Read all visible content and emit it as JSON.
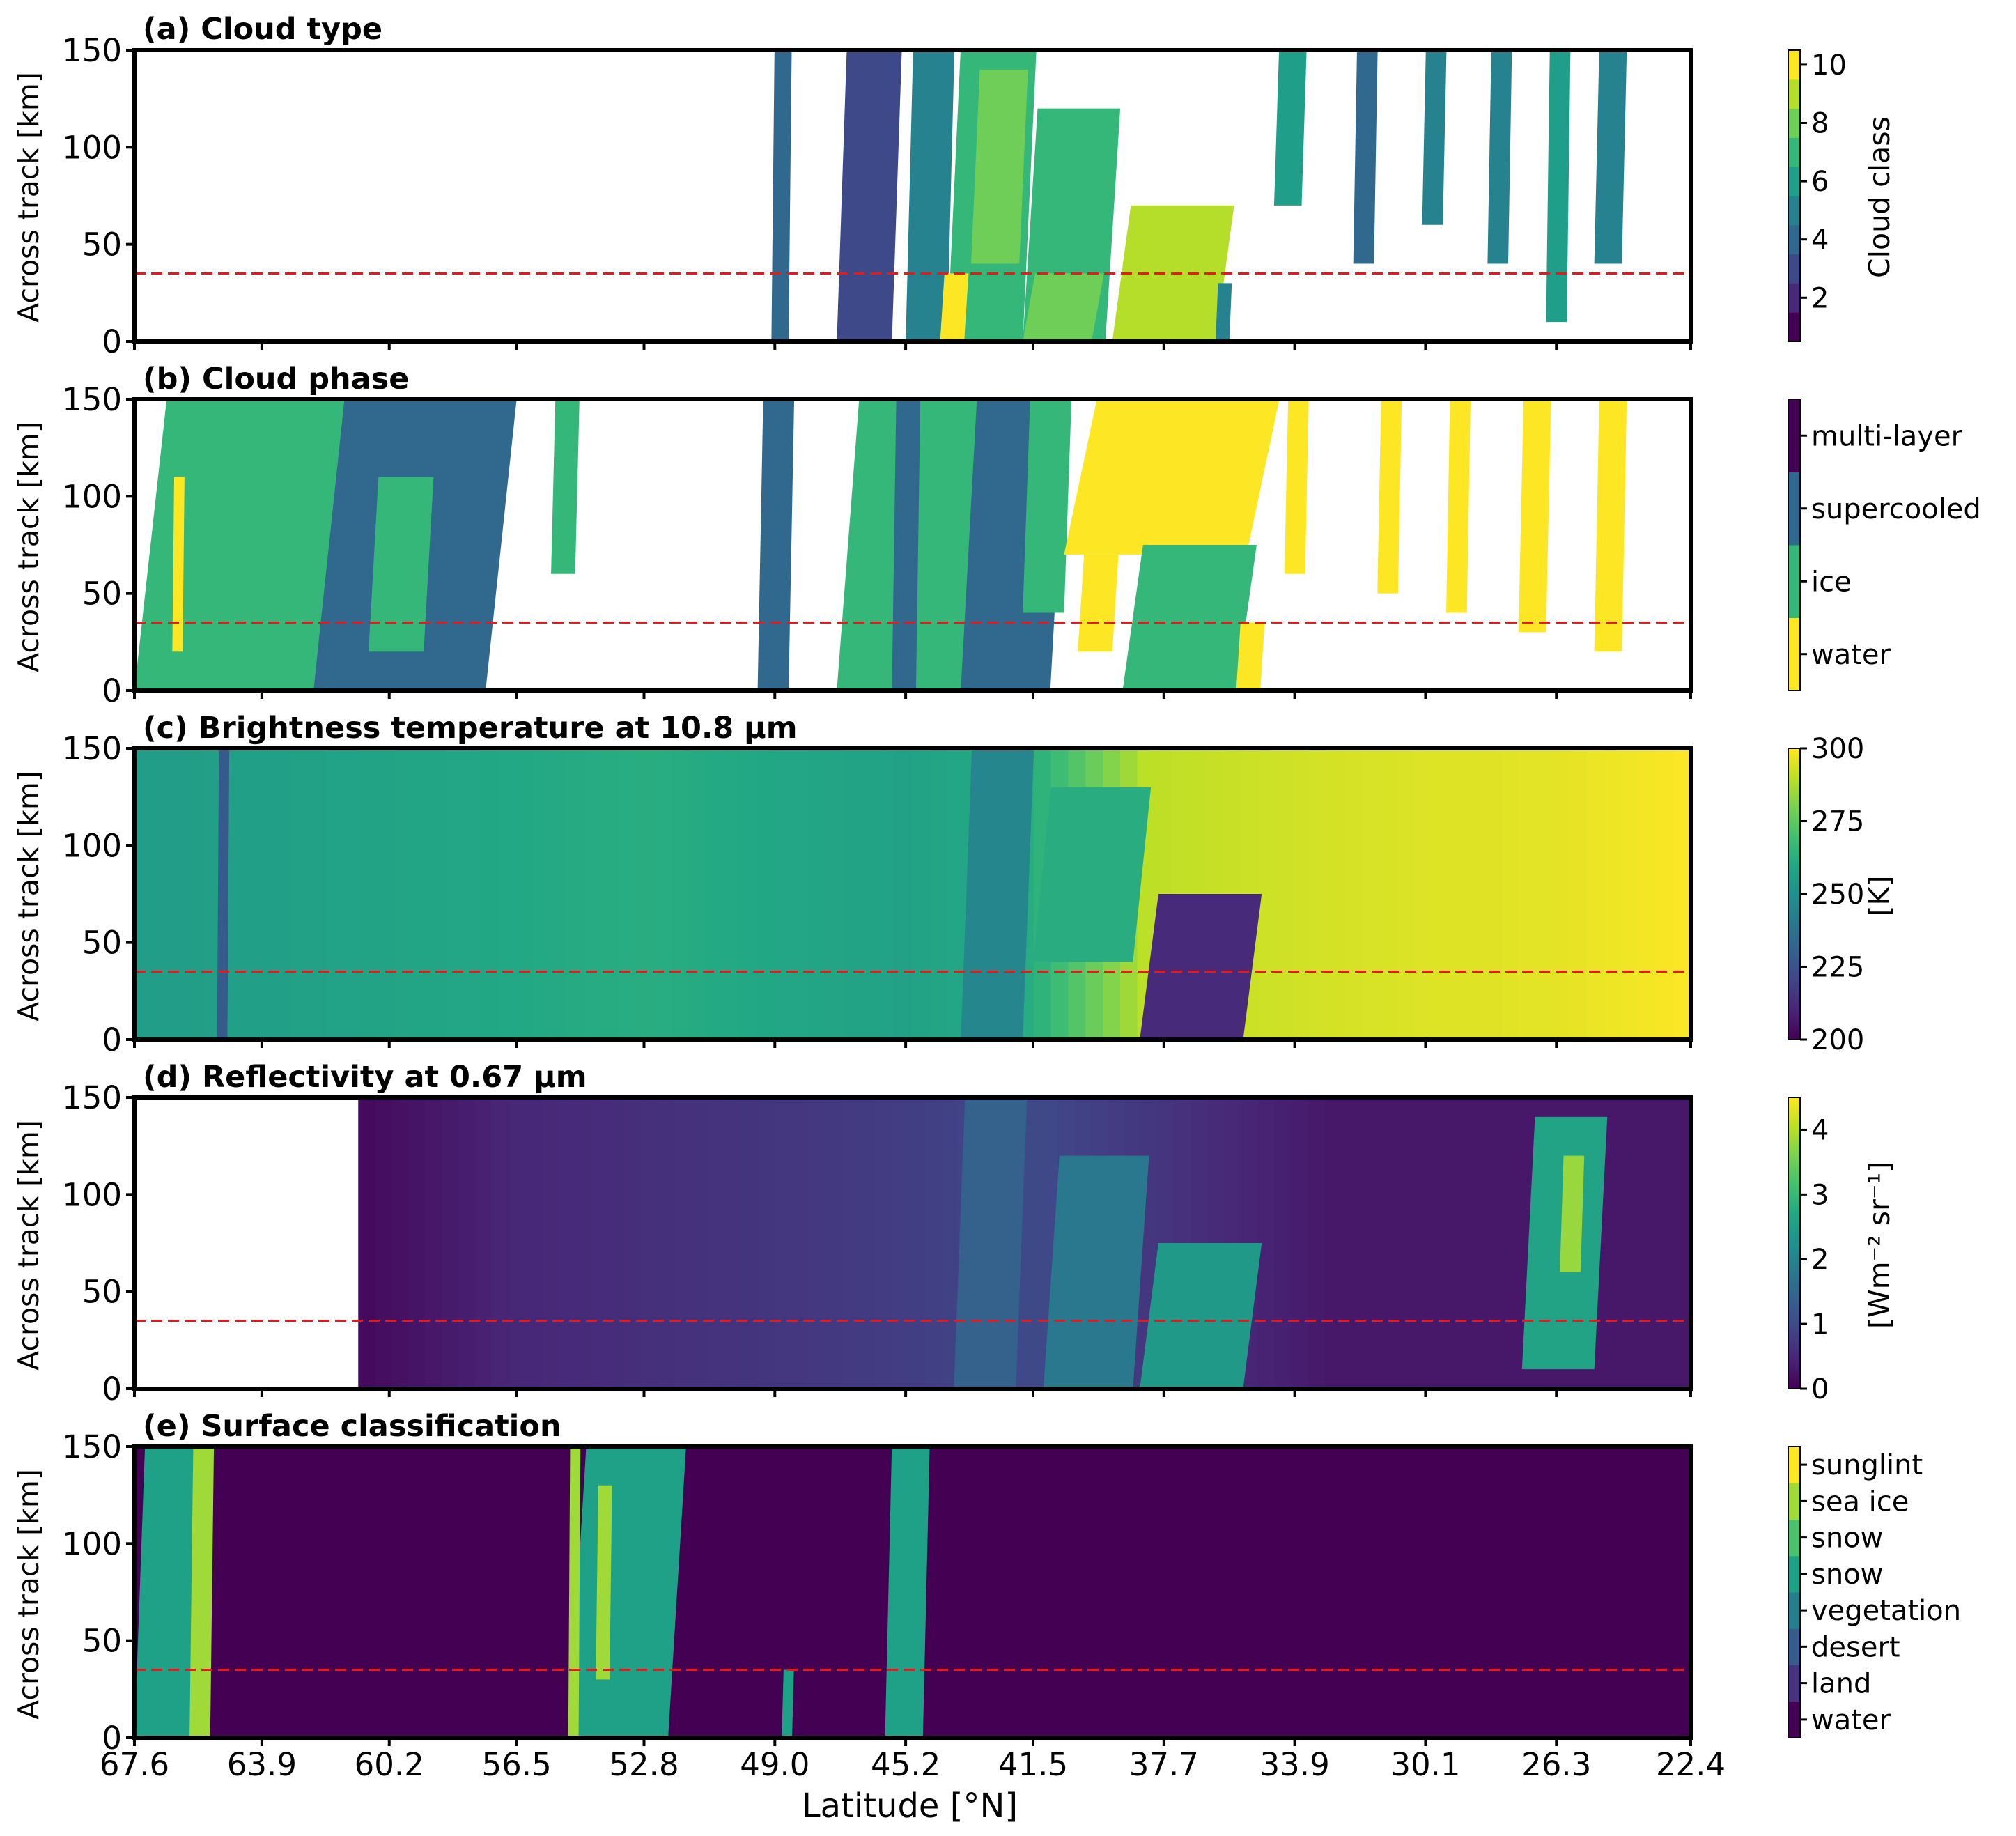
{
  "chart_data": [
    {
      "panel": "a",
      "title": "(a) Cloud type",
      "type": "heatmap",
      "ylabel": "Across track [km]",
      "yticks": [
        0,
        50,
        100,
        150
      ],
      "ylim": [
        0,
        150
      ],
      "reference_line": {
        "y": 35,
        "color": "#e41a1c",
        "style": "dashed"
      },
      "colorbar": {
        "label": "Cloud class",
        "kind": "continuous",
        "range": [
          0.5,
          10.5
        ],
        "ticks": [
          "2",
          "4",
          "6",
          "8",
          "10"
        ],
        "tick_values": [
          2,
          4,
          6,
          8,
          10
        ],
        "discrete_steps": 10,
        "colors": [
          "#440154",
          "#482878",
          "#3e4989",
          "#31688e",
          "#26828e",
          "#1f9e89",
          "#35b779",
          "#6ece58",
          "#b5de2b",
          "#fde725"
        ]
      },
      "regions": [
        {
          "x0": 49.1,
          "x1": 48.6,
          "y0": 0,
          "y1": 150,
          "c": "#31688e"
        },
        {
          "x0": 47.2,
          "x1": 45.6,
          "y0": 0,
          "y1": 150,
          "c": "#3e4989"
        },
        {
          "x0": 45.2,
          "x1": 44.0,
          "y0": 0,
          "y1": 150,
          "c": "#26828e"
        },
        {
          "x0": 44.0,
          "x1": 41.8,
          "y0": 0,
          "y1": 150,
          "c": "#35b779"
        },
        {
          "x0": 43.3,
          "x1": 41.9,
          "y0": 40,
          "y1": 140,
          "c": "#6ece58"
        },
        {
          "x0": 44.2,
          "x1": 43.5,
          "y0": 0,
          "y1": 35,
          "c": "#fde725"
        },
        {
          "x0": 41.8,
          "x1": 39.4,
          "y0": 0,
          "y1": 120,
          "c": "#35b779"
        },
        {
          "x0": 41.8,
          "x1": 39.8,
          "y0": 0,
          "y1": 35,
          "c": "#6ece58"
        },
        {
          "x0": 39.2,
          "x1": 36.2,
          "y0": 0,
          "y1": 70,
          "c": "#b5de2b"
        },
        {
          "x0": 36.2,
          "x1": 35.8,
          "y0": 0,
          "y1": 30,
          "c": "#26828e"
        },
        {
          "x0": 34.5,
          "x1": 33.7,
          "y0": 70,
          "y1": 150,
          "c": "#1f9e89"
        },
        {
          "x0": 32.2,
          "x1": 31.6,
          "y0": 40,
          "y1": 150,
          "c": "#31688e"
        },
        {
          "x0": 30.2,
          "x1": 29.6,
          "y0": 60,
          "y1": 150,
          "c": "#26828e"
        },
        {
          "x0": 28.3,
          "x1": 27.7,
          "y0": 40,
          "y1": 150,
          "c": "#26828e"
        },
        {
          "x0": 26.6,
          "x1": 26.0,
          "y0": 10,
          "y1": 150,
          "c": "#1f9e89"
        },
        {
          "x0": 25.2,
          "x1": 24.4,
          "y0": 40,
          "y1": 150,
          "c": "#26828e"
        }
      ]
    },
    {
      "panel": "b",
      "title": "(b) Cloud phase",
      "type": "heatmap",
      "ylabel": "Across track [km]",
      "yticks": [
        0,
        50,
        100,
        150
      ],
      "ylim": [
        0,
        150
      ],
      "reference_line": {
        "y": 35,
        "color": "#e41a1c",
        "style": "dashed"
      },
      "colorbar": {
        "label": "",
        "kind": "categorical",
        "categories": [
          "water",
          "ice",
          "supercooled",
          "multi-layer"
        ],
        "colors": [
          "#fde725",
          "#35b779",
          "#31688e",
          "#440154"
        ]
      },
      "regions": [
        {
          "x0": 67.6,
          "x1": 62.4,
          "y0": 0,
          "y1": 150,
          "c": "#35b779"
        },
        {
          "x0": 66.5,
          "x1": 66.2,
          "y0": 20,
          "y1": 110,
          "c": "#fde725"
        },
        {
          "x0": 64.2,
          "x1": 63.7,
          "y0": 0,
          "y1": 150,
          "c": "#35b779"
        },
        {
          "x0": 62.4,
          "x1": 57.4,
          "y0": 0,
          "y1": 150,
          "c": "#31688e"
        },
        {
          "x0": 60.8,
          "x1": 59.2,
          "y0": 20,
          "y1": 110,
          "c": "#35b779"
        },
        {
          "x0": 55.5,
          "x1": 54.8,
          "y0": 60,
          "y1": 150,
          "c": "#35b779"
        },
        {
          "x0": 49.5,
          "x1": 48.6,
          "y0": 0,
          "y1": 150,
          "c": "#31688e"
        },
        {
          "x0": 47.2,
          "x1": 43.6,
          "y0": 0,
          "y1": 150,
          "c": "#35b779"
        },
        {
          "x0": 45.6,
          "x1": 44.9,
          "y0": 0,
          "y1": 150,
          "c": "#31688e"
        },
        {
          "x0": 43.6,
          "x1": 41.0,
          "y0": 0,
          "y1": 150,
          "c": "#31688e"
        },
        {
          "x0": 41.8,
          "x1": 40.6,
          "y0": 40,
          "y1": 150,
          "c": "#35b779"
        },
        {
          "x0": 40.6,
          "x1": 35.3,
          "y0": 70,
          "y1": 150,
          "c": "#fde725"
        },
        {
          "x0": 40.2,
          "x1": 39.2,
          "y0": 20,
          "y1": 70,
          "c": "#fde725"
        },
        {
          "x0": 38.9,
          "x1": 35.6,
          "y0": 0,
          "y1": 75,
          "c": "#35b779"
        },
        {
          "x0": 35.6,
          "x1": 34.9,
          "y0": 0,
          "y1": 35,
          "c": "#fde725"
        },
        {
          "x0": 34.2,
          "x1": 33.6,
          "y0": 60,
          "y1": 150,
          "c": "#fde725"
        },
        {
          "x0": 31.5,
          "x1": 30.9,
          "y0": 50,
          "y1": 150,
          "c": "#fde725"
        },
        {
          "x0": 29.5,
          "x1": 28.9,
          "y0": 40,
          "y1": 150,
          "c": "#fde725"
        },
        {
          "x0": 27.4,
          "x1": 26.6,
          "y0": 30,
          "y1": 150,
          "c": "#fde725"
        },
        {
          "x0": 25.2,
          "x1": 24.4,
          "y0": 20,
          "y1": 150,
          "c": "#fde725"
        }
      ]
    },
    {
      "panel": "c",
      "title": "(c) Brightness temperature at 10.8 µm",
      "type": "heatmap",
      "ylabel": "Across track [km]",
      "yticks": [
        0,
        50,
        100,
        150
      ],
      "ylim": [
        0,
        150
      ],
      "reference_line": {
        "y": 35,
        "color": "#e41a1c",
        "style": "dashed"
      },
      "colorbar": {
        "label": "[K]",
        "kind": "continuous",
        "range": [
          200,
          300
        ],
        "ticks": [
          "200",
          "225",
          "250",
          "275",
          "300"
        ],
        "tick_values": [
          200,
          225,
          250,
          275,
          300
        ]
      },
      "background": {
        "x": [
          67.6,
          60.2,
          52.8,
          45.2,
          41.5,
          38.2,
          34.0,
          30.1,
          26.3,
          22.4
        ],
        "K": [
          255,
          258,
          262,
          257,
          262,
          290,
          293,
          295,
          296,
          300
        ]
      },
      "regions": [
        {
          "x0": 65.2,
          "x1": 64.9,
          "y0": 0,
          "y1": 150,
          "K": 228
        },
        {
          "x0": 43.6,
          "x1": 41.8,
          "y0": 0,
          "y1": 150,
          "K": 246
        },
        {
          "x0": 41.5,
          "x1": 38.6,
          "y0": 40,
          "y1": 130,
          "K": 262
        },
        {
          "x0": 38.4,
          "x1": 35.4,
          "y0": 0,
          "y1": 75,
          "K": 212
        }
      ]
    },
    {
      "panel": "d",
      "title": "(d) Reflectivity at 0.67 µm",
      "type": "heatmap",
      "ylabel": "Across track [km]",
      "yticks": [
        0,
        50,
        100,
        150
      ],
      "ylim": [
        0,
        150
      ],
      "reference_line": {
        "y": 35,
        "color": "#e41a1c",
        "style": "dashed"
      },
      "colorbar": {
        "label": "[Wm⁻² sr⁻¹]",
        "kind": "continuous",
        "range": [
          0,
          4.5
        ],
        "ticks": [
          "0",
          "1",
          "2",
          "3",
          "4"
        ],
        "tick_values": [
          0,
          1,
          2,
          3,
          4
        ]
      },
      "no_data": {
        "x0": 67.6,
        "x1": 61.1
      },
      "background": {
        "x": [
          61.1,
          56.5,
          45.2,
          41.5,
          38.0,
          33.0,
          22.4
        ],
        "W": [
          0.1,
          0.5,
          0.8,
          1.0,
          0.7,
          0.3,
          0.3
        ]
      },
      "regions": [
        {
          "x0": 43.8,
          "x1": 42.0,
          "y0": 0,
          "y1": 150,
          "W": 1.4
        },
        {
          "x0": 41.2,
          "x1": 38.6,
          "y0": 0,
          "y1": 120,
          "W": 1.8
        },
        {
          "x0": 38.4,
          "x1": 35.4,
          "y0": 0,
          "y1": 75,
          "W": 2.4
        },
        {
          "x0": 27.3,
          "x1": 25.2,
          "y0": 10,
          "y1": 140,
          "W": 2.6
        },
        {
          "x0": 26.2,
          "x1": 25.6,
          "y0": 60,
          "y1": 120,
          "W": 3.8
        }
      ]
    },
    {
      "panel": "e",
      "title": "(e) Surface classification",
      "type": "heatmap",
      "ylabel": "Across track [km]",
      "yticks": [
        0,
        50,
        100,
        150
      ],
      "ylim": [
        0,
        150
      ],
      "xlabel": "Latitude [°N]",
      "xticks": [
        "67.6",
        "63.9",
        "60.2",
        "56.5",
        "52.8",
        "49.0",
        "45.2",
        "41.5",
        "37.7",
        "33.9",
        "30.1",
        "26.3",
        "22.4"
      ],
      "reference_line": {
        "y": 35,
        "color": "#e41a1c",
        "style": "dashed"
      },
      "colorbar": {
        "label": "",
        "kind": "categorical",
        "categories": [
          "water",
          "land",
          "desert",
          "vegetation",
          "snow",
          "snow",
          "sea ice",
          "sunglint"
        ],
        "colors": [
          "#440154",
          "#46327e",
          "#365c8d",
          "#277f8e",
          "#1fa187",
          "#4ac16d",
          "#a0da39",
          "#fde725"
        ]
      },
      "background_color": "#440154",
      "regions": [
        {
          "x0": 67.6,
          "x1": 65.9,
          "y0": 0,
          "y1": 150,
          "c": "#1fa187"
        },
        {
          "x0": 66.0,
          "x1": 65.4,
          "y0": 0,
          "y1": 150,
          "c": "#a0da39"
        },
        {
          "x0": 55.0,
          "x1": 52.1,
          "y0": 0,
          "y1": 150,
          "c": "#1fa187"
        },
        {
          "x0": 55.0,
          "x1": 54.7,
          "y0": 0,
          "y1": 150,
          "c": "#a0da39"
        },
        {
          "x0": 54.2,
          "x1": 53.8,
          "y0": 30,
          "y1": 130,
          "c": "#a0da39"
        },
        {
          "x0": 48.8,
          "x1": 48.5,
          "y0": 0,
          "y1": 35,
          "c": "#1fa187"
        },
        {
          "x0": 45.8,
          "x1": 44.7,
          "y0": 0,
          "y1": 150,
          "c": "#1fa187"
        }
      ]
    }
  ]
}
